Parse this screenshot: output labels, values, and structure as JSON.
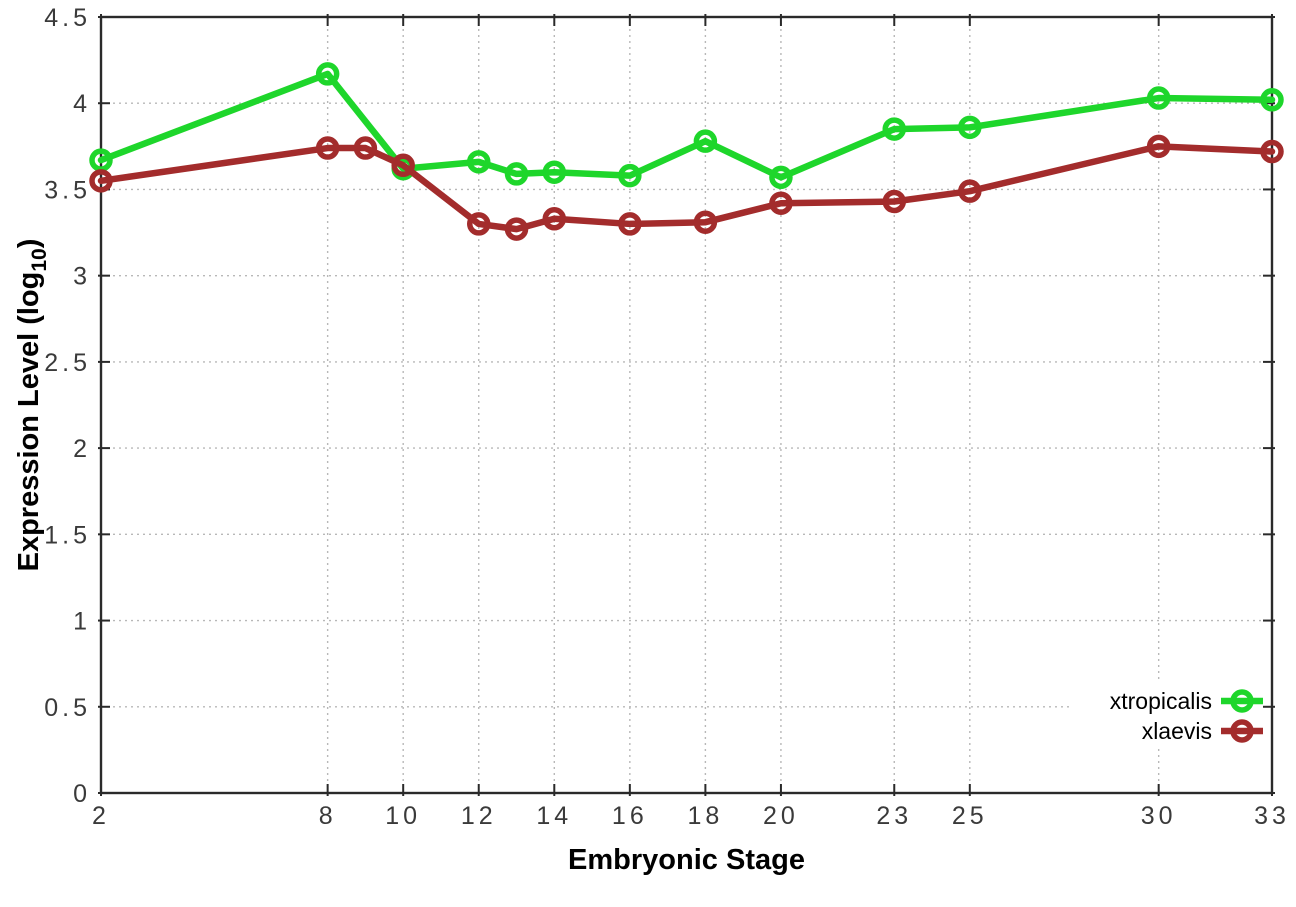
{
  "chart_data": {
    "type": "line",
    "title": "",
    "xlabel": "Embryonic Stage",
    "ylabel": {
      "prefix": "Expression Level (log",
      "subscript": "10",
      "suffix": ")"
    },
    "xlim": [
      2,
      33
    ],
    "ylim": [
      0,
      4.5
    ],
    "x_ticks": [
      2,
      8,
      10,
      12,
      14,
      16,
      18,
      20,
      23,
      25,
      30,
      33
    ],
    "x_tick_labels": [
      "2",
      "8",
      "10",
      "12",
      "14",
      "16",
      "18",
      "20",
      "23",
      "25",
      "30",
      "33"
    ],
    "y_ticks": [
      0,
      0.5,
      1,
      1.5,
      2,
      2.5,
      3,
      3.5,
      4,
      4.5
    ],
    "y_tick_labels": [
      "0",
      "0.5",
      "1",
      "1.5",
      "2",
      "2.5",
      "3",
      "3.5",
      "4",
      "4.5"
    ],
    "grid": true,
    "legend_position": "bottom-right",
    "series": [
      {
        "name": "xtropicalis",
        "color": "#1ed62b",
        "marker": "open-circle",
        "x": [
          2,
          8,
          10,
          12,
          13,
          14,
          16,
          18,
          20,
          23,
          25,
          30,
          33
        ],
        "y": [
          3.67,
          4.17,
          3.62,
          3.66,
          3.59,
          3.6,
          3.58,
          3.78,
          3.57,
          3.85,
          3.86,
          4.03,
          4.02
        ]
      },
      {
        "name": "xlaevis",
        "color": "#a32c2c",
        "marker": "open-circle",
        "x": [
          2,
          8,
          9,
          10,
          12,
          13,
          14,
          16,
          18,
          20,
          23,
          25,
          30,
          33
        ],
        "y": [
          3.55,
          3.74,
          3.74,
          3.64,
          3.3,
          3.27,
          3.33,
          3.3,
          3.31,
          3.42,
          3.43,
          3.49,
          3.75,
          3.72
        ]
      }
    ],
    "colors": {
      "background": "#ffffff",
      "grid": "#b8b8b8",
      "axis": "#2a2a2a",
      "tick_text": "#3a3a3a",
      "title_text": "#000000"
    }
  }
}
